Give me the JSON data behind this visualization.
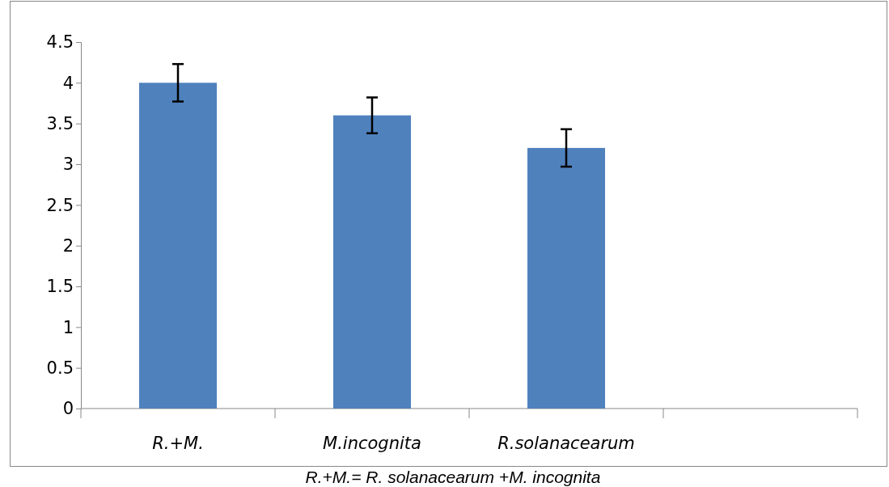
{
  "chart_data": {
    "type": "bar",
    "categories": [
      "R.+M.",
      "M.incognita",
      "R.solanacearum",
      null
    ],
    "values": [
      4,
      3.6,
      3.2,
      null
    ],
    "errors": [
      0.23,
      0.22,
      0.23,
      null
    ],
    "color": "#4f81bd",
    "ylim": [
      0,
      4.5
    ],
    "yticks": [
      0,
      0.5,
      1,
      1.5,
      2,
      2.5,
      3,
      3.5,
      4,
      4.5
    ],
    "grid": false,
    "annotations": [
      "R.+M.= R. solanacearum +M. incognita"
    ]
  }
}
